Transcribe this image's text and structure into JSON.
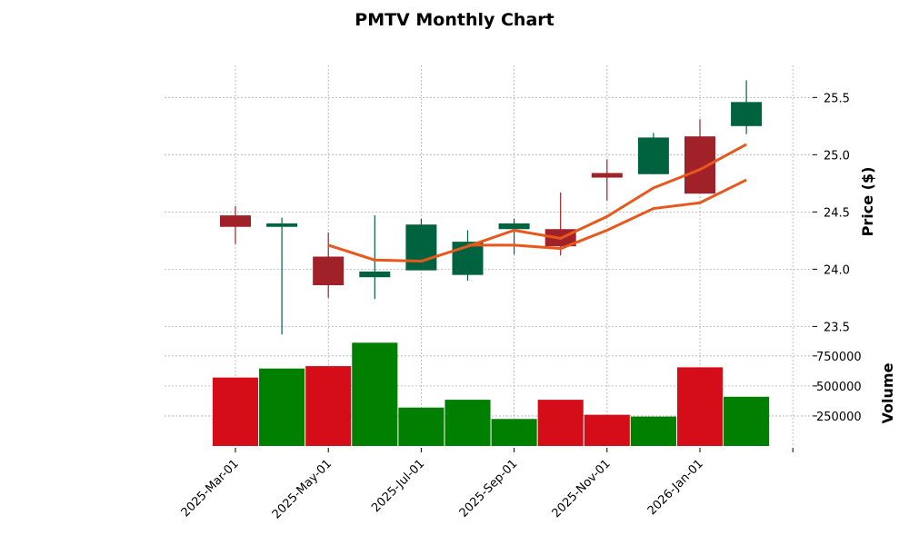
{
  "chart_data": {
    "type": "candlestick",
    "title": "PMTV Monthly Chart",
    "ylabel_price": "Price ($)",
    "ylabel_volume": "Volume",
    "price_ylim": [
      23.4,
      25.78
    ],
    "price_ticks": [
      23.5,
      24.0,
      24.5,
      25.0,
      25.5
    ],
    "price_tick_labels": [
      "23.5",
      "24.0",
      "24.5",
      "25.0",
      "25.5"
    ],
    "volume_ylim": [
      0,
      900000
    ],
    "volume_ticks": [
      250000,
      500000,
      750000
    ],
    "volume_tick_labels": [
      "250000",
      "500000",
      "750000"
    ],
    "x_tick_index": [
      0,
      2,
      4,
      6,
      8,
      10,
      12
    ],
    "x_tick_labels": [
      "2025-Mar-01",
      "2025-May-01",
      "2025-Jul-01",
      "2025-Sep-01",
      "2025-Nov-01",
      "2026-Jan-01",
      ""
    ],
    "candles": [
      {
        "open": 24.47,
        "high": 24.55,
        "low": 24.22,
        "close": 24.37,
        "volume": 570000
      },
      {
        "open": 24.37,
        "high": 24.45,
        "low": 23.43,
        "close": 24.4,
        "volume": 645000
      },
      {
        "open": 24.11,
        "high": 24.32,
        "low": 23.75,
        "close": 23.86,
        "volume": 665000
      },
      {
        "open": 23.93,
        "high": 24.47,
        "low": 23.74,
        "close": 23.98,
        "volume": 860000
      },
      {
        "open": 23.99,
        "high": 24.44,
        "low": 23.99,
        "close": 24.39,
        "volume": 320000
      },
      {
        "open": 23.95,
        "high": 24.34,
        "low": 23.9,
        "close": 24.24,
        "volume": 385000
      },
      {
        "open": 24.35,
        "high": 24.44,
        "low": 24.13,
        "close": 24.4,
        "volume": 225000
      },
      {
        "open": 24.35,
        "high": 24.67,
        "low": 24.12,
        "close": 24.2,
        "volume": 385000
      },
      {
        "open": 24.84,
        "high": 24.96,
        "low": 24.6,
        "close": 24.8,
        "volume": 260000
      },
      {
        "open": 24.83,
        "high": 25.19,
        "low": 24.83,
        "close": 25.15,
        "volume": 245000
      },
      {
        "open": 25.16,
        "high": 25.31,
        "low": 24.66,
        "close": 24.66,
        "volume": 655000
      },
      {
        "open": 25.25,
        "high": 25.65,
        "low": 25.18,
        "close": 25.46,
        "volume": 410000
      }
    ],
    "ma_short": [
      null,
      null,
      24.21,
      24.08,
      24.07,
      24.2,
      24.34,
      24.27,
      24.46,
      24.71,
      24.87,
      25.09
    ],
    "ma_long": [
      null,
      null,
      null,
      null,
      null,
      24.21,
      24.21,
      24.18,
      24.34,
      24.53,
      24.58,
      24.78
    ],
    "colors": {
      "up_body": "#006340",
      "down_body": "#a02128",
      "up_volume": "#007f00",
      "down_volume": "#d50d18",
      "ma": "#e8581c"
    }
  }
}
